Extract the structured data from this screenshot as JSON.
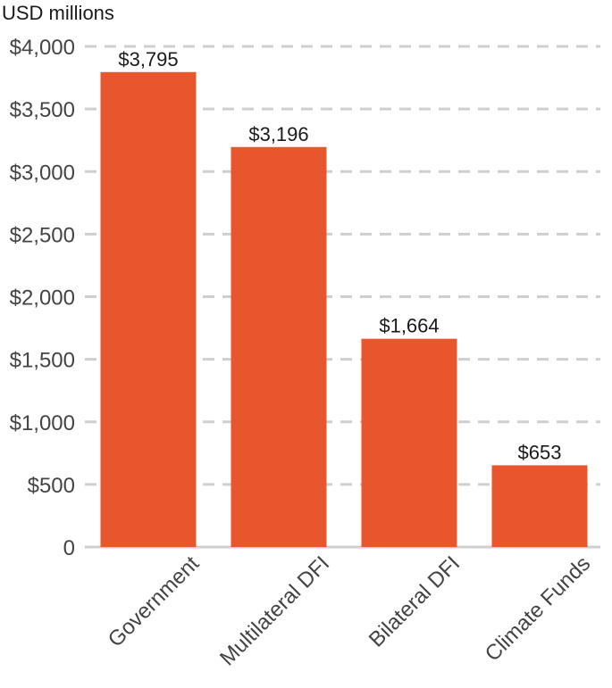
{
  "chart_data": {
    "type": "bar",
    "ylabel": "USD millions",
    "xlabel": "",
    "categories": [
      "Government",
      "Multilateral DFI",
      "Bilateral DFI",
      "Climate Funds"
    ],
    "values": [
      3795,
      3196,
      1664,
      653
    ],
    "value_labels": [
      "$3,795",
      "$3,196",
      "$1,664",
      "$653"
    ],
    "ylim": [
      0,
      4000
    ],
    "yticks": [
      0,
      500,
      1000,
      1500,
      2000,
      2500,
      3000,
      3500,
      4000
    ],
    "ytick_labels": [
      "0",
      "$500",
      "$1,000",
      "$1,500",
      "$2,000",
      "$2,500",
      "$3,000",
      "$3,500",
      "$4,000"
    ],
    "grid": "horizontal dashed",
    "bar_color": "#e8562e",
    "grid_color": "#cfcfcf",
    "text_color": "#1a1a1a"
  }
}
